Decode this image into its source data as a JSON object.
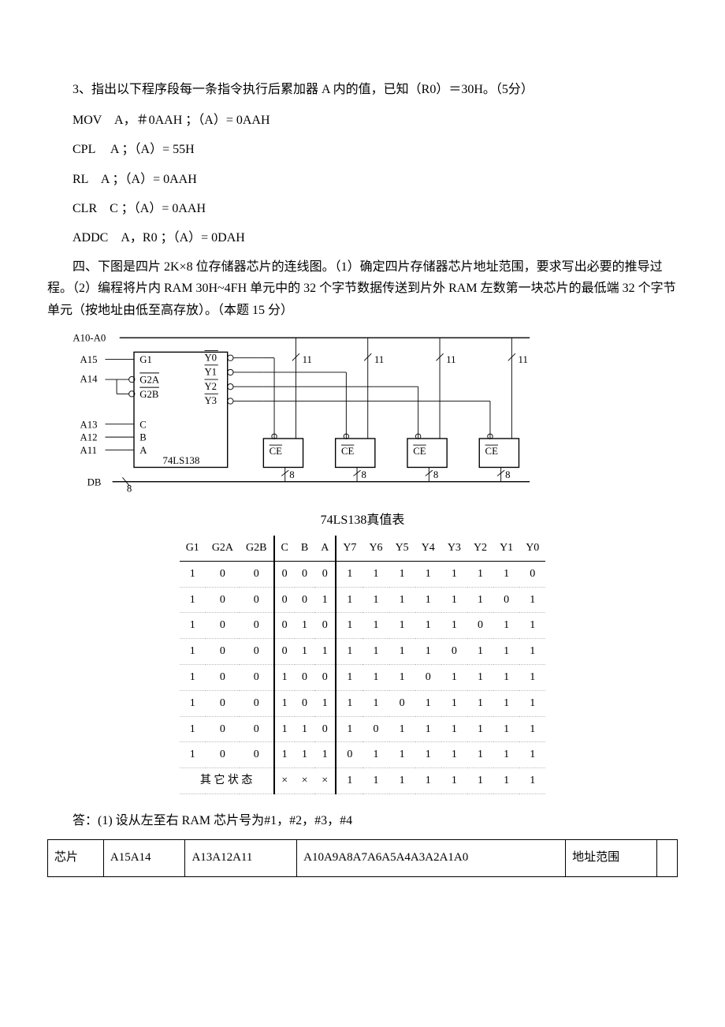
{
  "q3": {
    "prompt": "3、指出以下程序段每一条指令执行后累加器 A 内的值，已知（R0）＝30H。（5分）",
    "lines": [
      "MOV　A，＃0AAH ；（A）= 0AAH",
      "CPL　 A ；（A）= 55H",
      "RL　A ；（A）= 0AAH",
      "CLR　C ；（A）= 0AAH",
      "ADDC　A，R0 ；（A）= 0DAH"
    ]
  },
  "q4": {
    "prompt": "四、下图是四片 2K×8 位存储器芯片的连线图。（1）确定四片存储器芯片地址范围，要求写出必要的推导过程。（2）编程将片内 RAM 30H~4FH 单元中的 32 个字节数据传送到片外 RAM 左数第一块芯片的最低端 32 个字节单元（按地址由低至高存放）。（本题 15 分）"
  },
  "diagram": {
    "bus_label": "A10-A0",
    "a15": "A15",
    "a14": "A14",
    "a13": "A13",
    "a12": "A12",
    "a11": "A11",
    "db": "DB",
    "g1": "G1",
    "g2a": "G2A",
    "g2b": "G2B",
    "c": "C",
    "b": "B",
    "a": "A",
    "chip": "74LS138",
    "y0": "Y0",
    "y1": "Y1",
    "y2": "Y2",
    "y3": "Y3",
    "eleven": "11",
    "ce": "CE",
    "eight": "8",
    "eight_slash": "8"
  },
  "truth": {
    "title": "74LS138真值表",
    "headers_enable": [
      "G1",
      "G2A",
      "G2B"
    ],
    "headers_sel": [
      "C",
      "B",
      "A"
    ],
    "headers_out": [
      "Y7",
      "Y6",
      "Y5",
      "Y4",
      "Y3",
      "Y2",
      "Y1",
      "Y0"
    ],
    "rows": [
      {
        "en": [
          "1",
          "0",
          "0"
        ],
        "sel": [
          "0",
          "0",
          "0"
        ],
        "out": [
          "1",
          "1",
          "1",
          "1",
          "1",
          "1",
          "1",
          "0"
        ]
      },
      {
        "en": [
          "1",
          "0",
          "0"
        ],
        "sel": [
          "0",
          "0",
          "1"
        ],
        "out": [
          "1",
          "1",
          "1",
          "1",
          "1",
          "1",
          "0",
          "1"
        ]
      },
      {
        "en": [
          "1",
          "0",
          "0"
        ],
        "sel": [
          "0",
          "1",
          "0"
        ],
        "out": [
          "1",
          "1",
          "1",
          "1",
          "1",
          "0",
          "1",
          "1"
        ]
      },
      {
        "en": [
          "1",
          "0",
          "0"
        ],
        "sel": [
          "0",
          "1",
          "1"
        ],
        "out": [
          "1",
          "1",
          "1",
          "1",
          "0",
          "1",
          "1",
          "1"
        ]
      },
      {
        "en": [
          "1",
          "0",
          "0"
        ],
        "sel": [
          "1",
          "0",
          "0"
        ],
        "out": [
          "1",
          "1",
          "1",
          "0",
          "1",
          "1",
          "1",
          "1"
        ]
      },
      {
        "en": [
          "1",
          "0",
          "0"
        ],
        "sel": [
          "1",
          "0",
          "1"
        ],
        "out": [
          "1",
          "1",
          "0",
          "1",
          "1",
          "1",
          "1",
          "1"
        ]
      },
      {
        "en": [
          "1",
          "0",
          "0"
        ],
        "sel": [
          "1",
          "1",
          "0"
        ],
        "out": [
          "1",
          "0",
          "1",
          "1",
          "1",
          "1",
          "1",
          "1"
        ]
      },
      {
        "en": [
          "1",
          "0",
          "0"
        ],
        "sel": [
          "1",
          "1",
          "1"
        ],
        "out": [
          "0",
          "1",
          "1",
          "1",
          "1",
          "1",
          "1",
          "1"
        ]
      }
    ],
    "other_row": {
      "en_label": "其 它 状 态",
      "sel": [
        "×",
        "×",
        "×"
      ],
      "out": [
        "1",
        "1",
        "1",
        "1",
        "1",
        "1",
        "1",
        "1"
      ]
    }
  },
  "answer": {
    "line": "答：(1) 设从左至右 RAM 芯片号为#1，#2，#3，#4",
    "table_cells": [
      "芯片",
      "A15A14",
      "A13A12A11",
      "A10A9A8A7A6A5A4A3A2A1A0",
      "地址范围",
      ""
    ]
  }
}
